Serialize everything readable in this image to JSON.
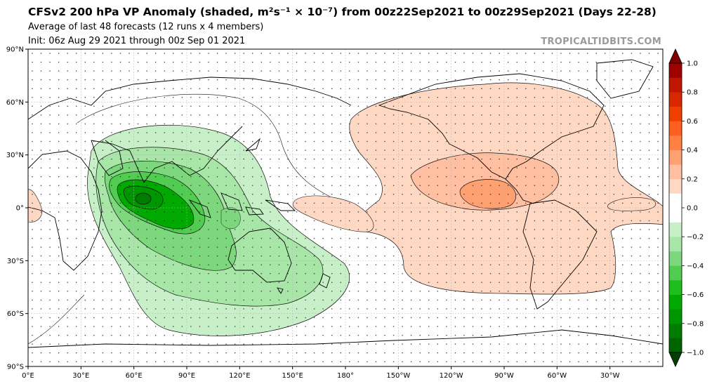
{
  "header": {
    "title": "CFSv2 200 hPa VP Anomaly (shaded, m²s⁻¹ × 10⁻⁷) from 00z22Sep2021 to 00z29Sep2021 (Days 22-28)",
    "subtitle1": "Average of last 48 forecasts (12 runs x 4 members)",
    "subtitle2": "Init: 06z Aug 29 2021 through 00z Sep 01 2021",
    "brand": "TROPICALTIDBITS.COM"
  },
  "map": {
    "projection": "cylindrical",
    "lon_range": [
      0,
      360
    ],
    "lat_range": [
      -90,
      90
    ],
    "lat_ticks": [
      {
        "lat": 90,
        "label": "90°N"
      },
      {
        "lat": 60,
        "label": "60°N"
      },
      {
        "lat": 30,
        "label": "30°N"
      },
      {
        "lat": 0,
        "label": "0°"
      },
      {
        "lat": -30,
        "label": "30°S"
      },
      {
        "lat": -60,
        "label": "60°S"
      },
      {
        "lat": -90,
        "label": "90°S"
      }
    ],
    "lon_ticks": [
      {
        "lon": 0,
        "label": "0°E"
      },
      {
        "lon": 30,
        "label": "30°E"
      },
      {
        "lon": 60,
        "label": "60°E"
      },
      {
        "lon": 90,
        "label": "90°E"
      },
      {
        "lon": 120,
        "label": "120°E"
      },
      {
        "lon": 150,
        "label": "150°E"
      },
      {
        "lon": 180,
        "label": "180°"
      },
      {
        "lon": 210,
        "label": "150°W"
      },
      {
        "lon": 240,
        "label": "120°W"
      },
      {
        "lon": 270,
        "label": "90°W"
      },
      {
        "lon": 300,
        "label": "60°W"
      },
      {
        "lon": 330,
        "label": "30°W"
      }
    ],
    "features": {
      "negative_center": "Indian Ocean / Maritime Continent (upper-level divergence, green)",
      "positive_center": "Eastern Pacific / Central America (upper-level convergence, orange)"
    }
  },
  "colorbar": {
    "min": -1.0,
    "max": 1.0,
    "labels": [
      "1.0",
      "0.8",
      "0.6",
      "0.4",
      "0.2",
      "0.0",
      "−0.2",
      "−0.4",
      "−0.6",
      "−0.8",
      "−1.0"
    ],
    "colors": [
      "#006400",
      "#007d00",
      "#009600",
      "#00aa00",
      "#1ebe1e",
      "#50cc50",
      "#7dd87d",
      "#a8e6a8",
      "#c8f0c8",
      "#ffffff",
      "#ffffff",
      "#ffd8c4",
      "#ffbfa0",
      "#ffa070",
      "#ff8040",
      "#ff6020",
      "#f04000",
      "#d82800",
      "#c01800",
      "#a00000"
    ],
    "extend_low_color": "#004000",
    "extend_high_color": "#800000"
  }
}
